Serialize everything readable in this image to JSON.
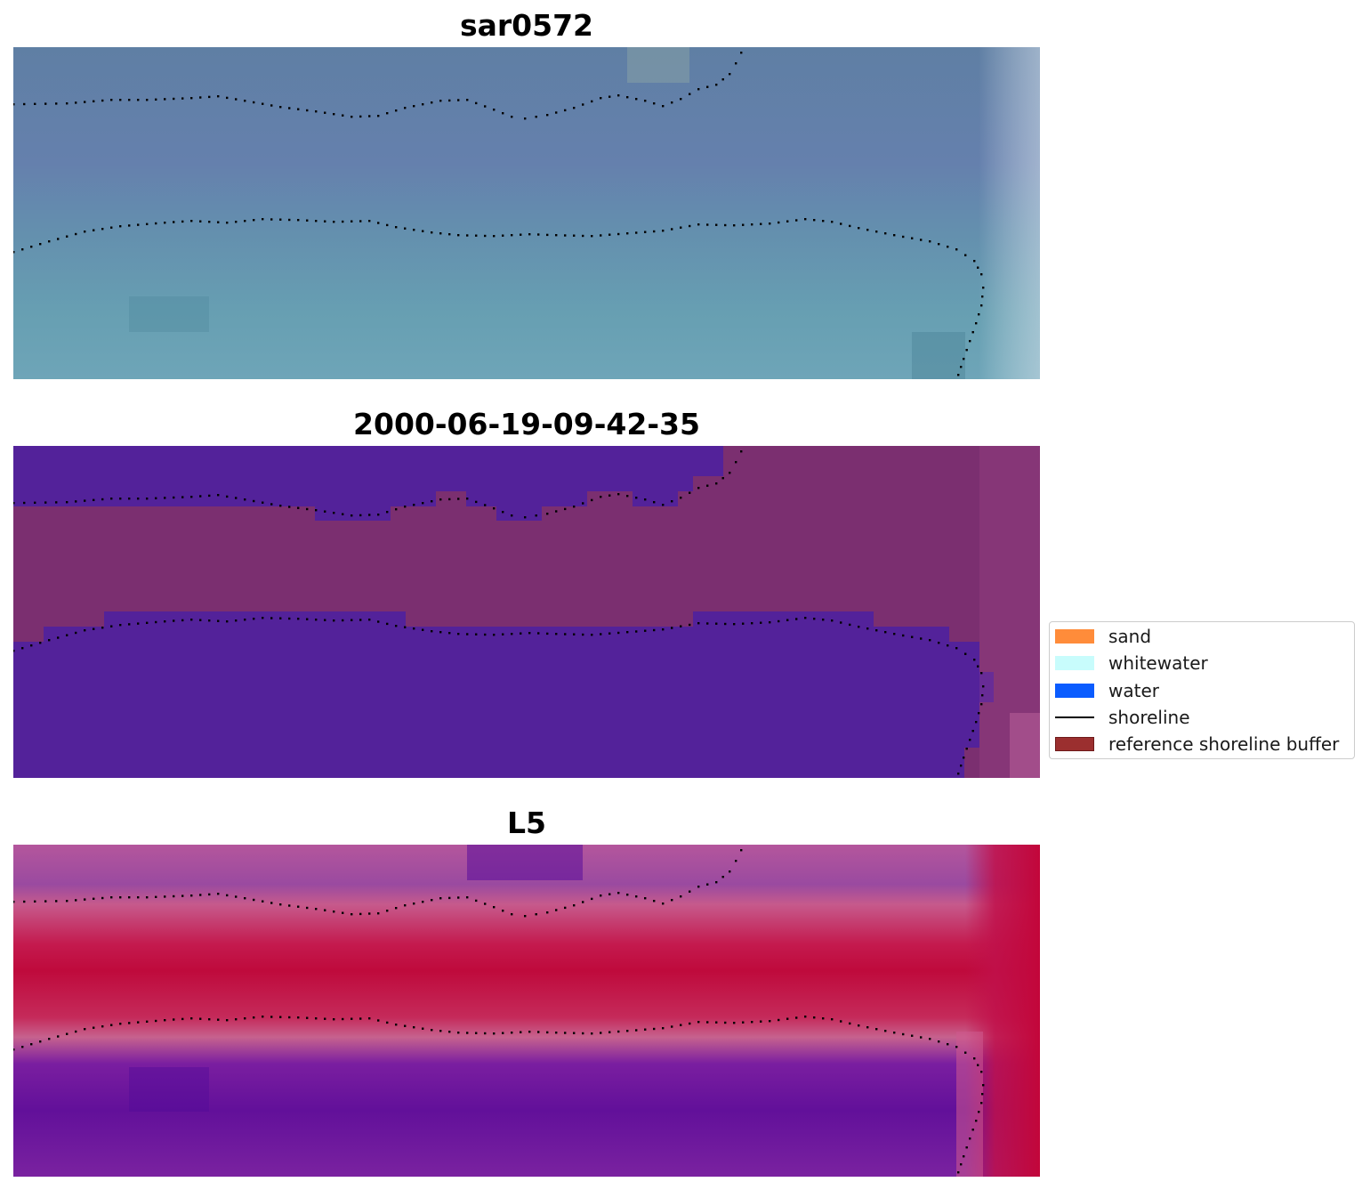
{
  "panels": [
    {
      "title": "sar0572",
      "style": "rgb"
    },
    {
      "title": "2000-06-19-09-42-35",
      "style": "classified"
    },
    {
      "title": "L5",
      "style": "index"
    }
  ],
  "legend": {
    "items": [
      {
        "label": "sand",
        "color": "#ff8c3a",
        "kind": "patch"
      },
      {
        "label": "whitewater",
        "color": "#c8fcfc",
        "kind": "patch"
      },
      {
        "label": "water",
        "color": "#0a5cff",
        "kind": "patch"
      },
      {
        "label": "shoreline",
        "color": "#000000",
        "kind": "line"
      },
      {
        "label": "reference shoreline buffer",
        "color": "#9b2f2f",
        "kind": "patch"
      }
    ]
  },
  "colors": {
    "rgb_top": "#6380a6",
    "rgb_bottom": "#6aa0b2",
    "class_water": "#53229a",
    "class_buffer": "#7b2f70",
    "index_high": "#bf0a3c",
    "index_low": "#6b169a",
    "shoreline_dots": "#000000"
  }
}
